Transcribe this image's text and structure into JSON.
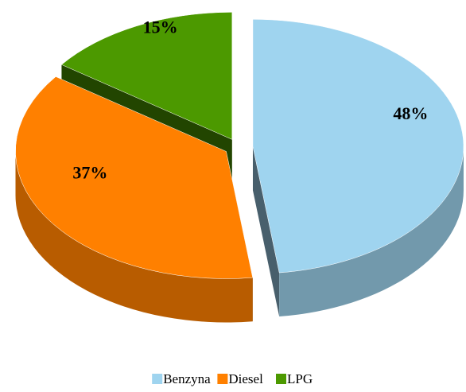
{
  "chart_data": {
    "type": "pie",
    "categories": [
      "Benzyna",
      "Diesel",
      "LPG"
    ],
    "values": [
      48,
      37,
      15
    ],
    "value_labels": [
      "48%",
      "37%",
      "15%"
    ],
    "colors": [
      "#9fd4ef",
      "#ff8000",
      "#4c9900"
    ],
    "legend": "bottom"
  }
}
